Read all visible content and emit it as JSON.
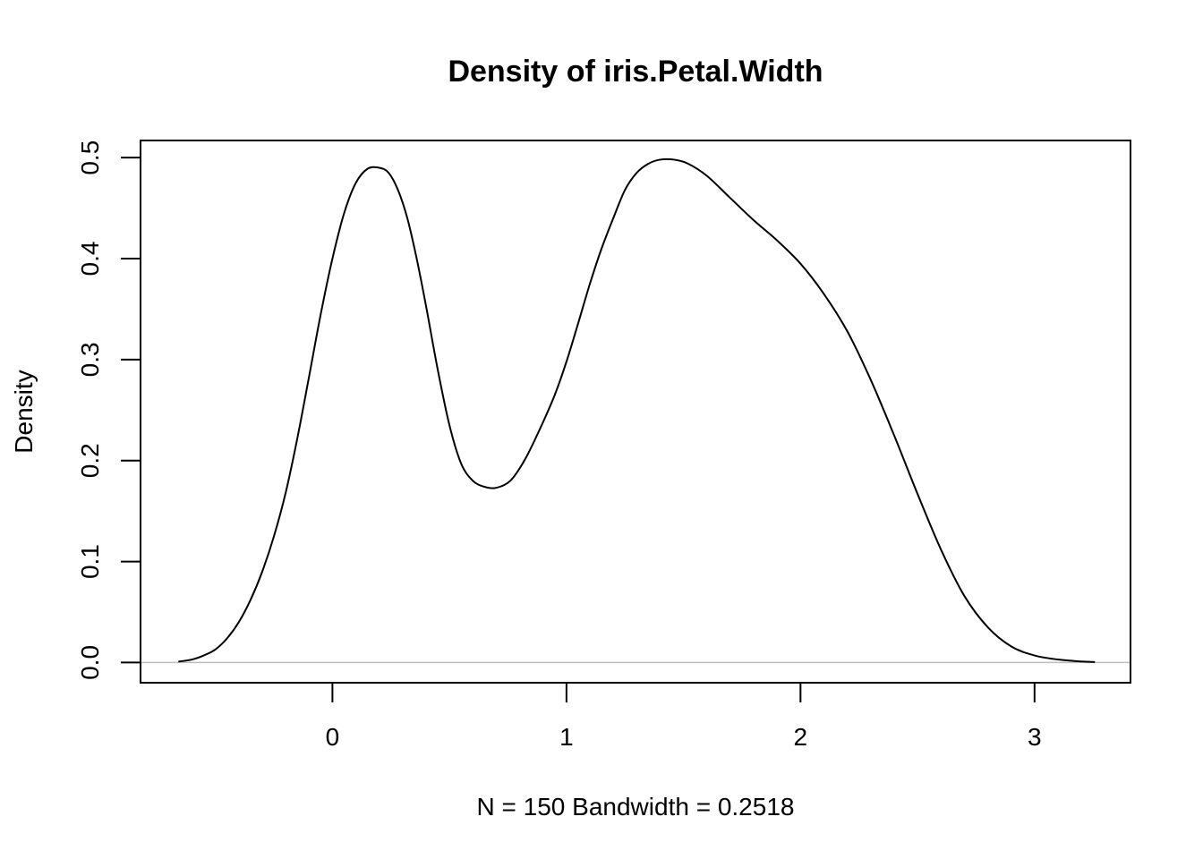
{
  "chart_data": {
    "type": "line",
    "title": "Density of iris.Petal.Width",
    "xlabel": "N = 150   Bandwidth = 0.2518",
    "ylabel": "Density",
    "xlim": [
      -0.82,
      3.41
    ],
    "ylim": [
      -0.02,
      0.517
    ],
    "x_ticks": [
      0,
      1,
      2,
      3
    ],
    "x_tick_labels": [
      "0",
      "1",
      "2",
      "3"
    ],
    "y_ticks": [
      0.0,
      0.1,
      0.2,
      0.3,
      0.4,
      0.5
    ],
    "y_tick_labels": [
      "0.0",
      "0.1",
      "0.2",
      "0.3",
      "0.4",
      "0.5"
    ],
    "baseline": 0,
    "grid": false,
    "colors": {
      "line": "#000000",
      "baseline": "#bebebe",
      "box": "#000000"
    },
    "series": [
      {
        "x": [
          -0.655,
          -0.6,
          -0.55,
          -0.5,
          -0.45,
          -0.4,
          -0.35,
          -0.3,
          -0.25,
          -0.2,
          -0.15,
          -0.1,
          -0.05,
          0.0,
          0.05,
          0.1,
          0.15,
          0.2,
          0.24,
          0.28,
          0.32,
          0.36,
          0.4,
          0.45,
          0.5,
          0.55,
          0.6,
          0.65,
          0.7,
          0.76,
          0.82,
          0.88,
          0.95,
          1.0,
          1.05,
          1.1,
          1.15,
          1.2,
          1.25,
          1.3,
          1.35,
          1.4,
          1.46,
          1.52,
          1.6,
          1.7,
          1.8,
          1.9,
          2.0,
          2.1,
          2.2,
          2.3,
          2.4,
          2.5,
          2.6,
          2.7,
          2.8,
          2.9,
          3.0,
          3.1,
          3.2,
          3.255
        ],
        "y": [
          0.001,
          0.003,
          0.007,
          0.013,
          0.024,
          0.04,
          0.062,
          0.09,
          0.125,
          0.168,
          0.222,
          0.283,
          0.345,
          0.4,
          0.445,
          0.475,
          0.489,
          0.49,
          0.485,
          0.468,
          0.44,
          0.4,
          0.353,
          0.29,
          0.235,
          0.197,
          0.18,
          0.174,
          0.173,
          0.18,
          0.2,
          0.228,
          0.265,
          0.298,
          0.336,
          0.375,
          0.41,
          0.44,
          0.468,
          0.485,
          0.494,
          0.498,
          0.498,
          0.494,
          0.482,
          0.46,
          0.438,
          0.418,
          0.395,
          0.365,
          0.328,
          0.28,
          0.225,
          0.167,
          0.112,
          0.066,
          0.035,
          0.016,
          0.007,
          0.003,
          0.001,
          0.0005
        ]
      }
    ]
  }
}
